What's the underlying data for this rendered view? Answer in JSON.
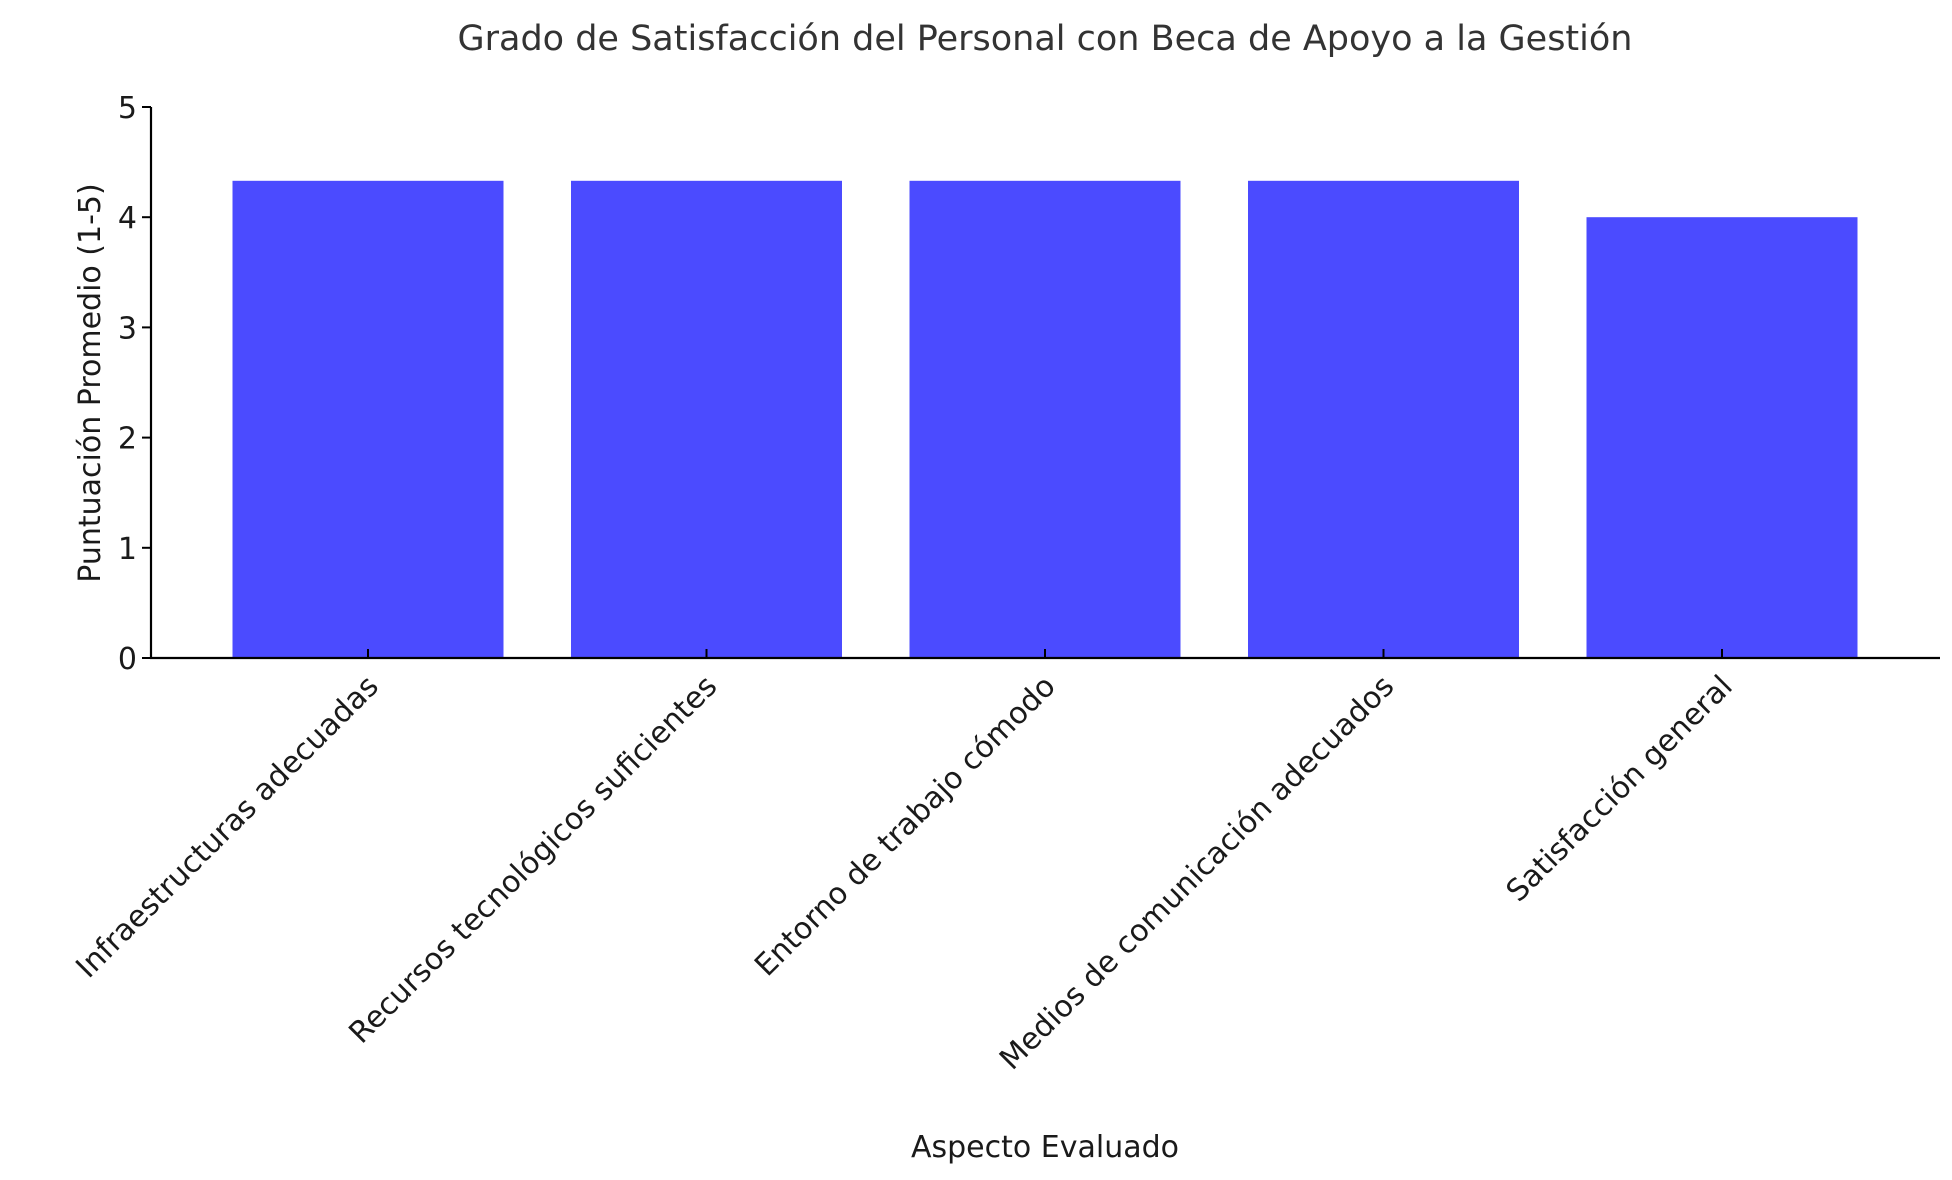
{
  "chart_data": {
    "type": "bar",
    "title": "Grado de Satisfacción del Personal con Beca de Apoyo a la Gestión",
    "xlabel": "Aspecto Evaluado",
    "ylabel": "Puntuación Promedio (1-5)",
    "categories": [
      "Infraestructuras adecuadas",
      "Recursos tecnológicos suficientes",
      "Entorno de trabajo cómodo",
      "Medios de comunicación adecuados",
      "Satisfacción general"
    ],
    "values": [
      4.33,
      4.33,
      4.33,
      4.33,
      4.0
    ],
    "ylim": [
      0,
      5
    ],
    "yticks": [
      "0",
      "1",
      "2",
      "3",
      "4",
      "5"
    ],
    "bar_color": "#4b4bff",
    "grid": false,
    "legend": "none"
  }
}
